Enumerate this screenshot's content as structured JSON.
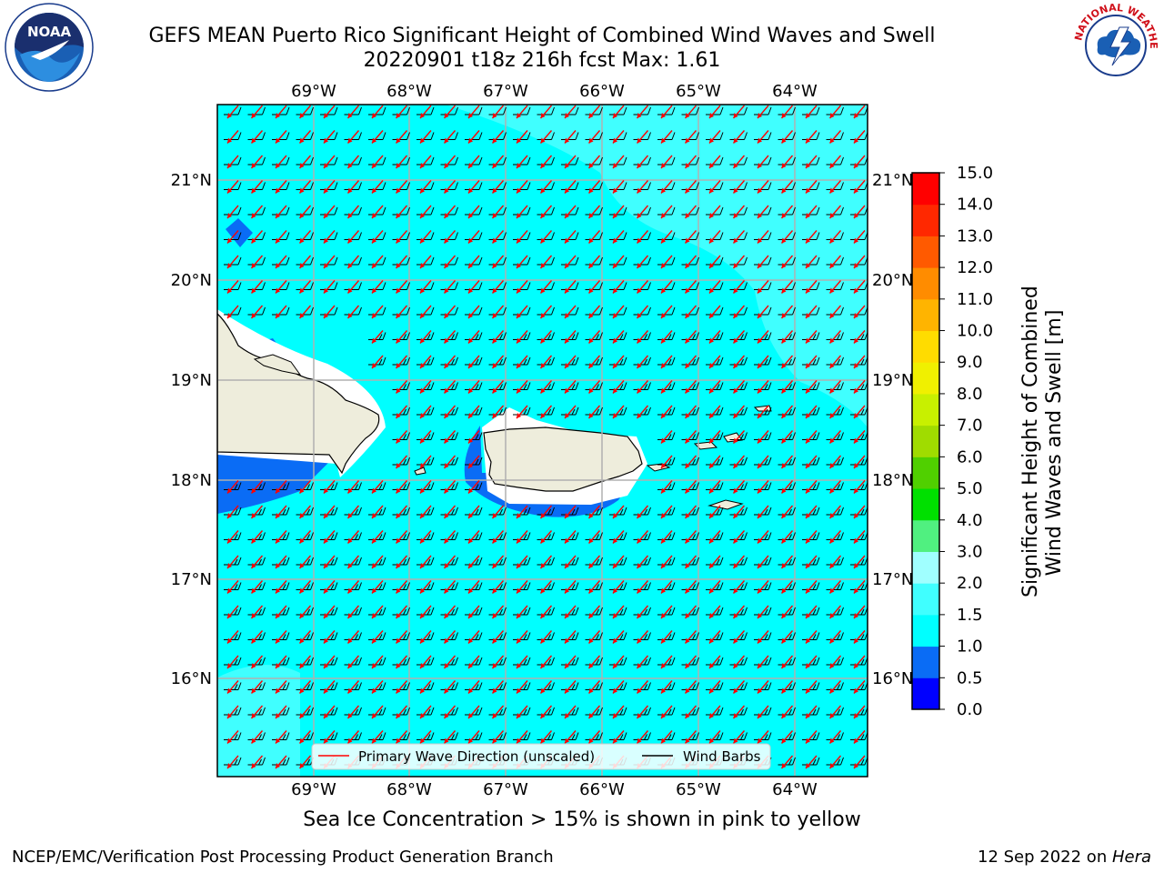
{
  "title_line1": "GEFS MEAN Puerto Rico Significant Height of Combined Wind Waves and Swell",
  "title_line2": "20220901 t18z 216h fcst   Max: 1.61",
  "caption": "Sea Ice Concentration > 15% is shown in pink to yellow",
  "footer_left": "NCEP/EMC/Verification Post Processing Product Generation Branch",
  "footer_right_date": "12 Sep 2022 on ",
  "footer_right_machine": "Hera",
  "colorbar": {
    "title_line1": "Significant Height of Combined",
    "title_line2": "Wind Waves and Swell [m]",
    "ticks": [
      "0.0",
      "0.5",
      "1.0",
      "1.5",
      "2.0",
      "3.0",
      "4.0",
      "5.0",
      "6.0",
      "7.0",
      "8.0",
      "9.0",
      "10.0",
      "11.0",
      "12.0",
      "13.0",
      "14.0",
      "15.0"
    ],
    "colors": [
      "#0000ff",
      "#0a6cf5",
      "#00ffff",
      "#40ffff",
      "#a0ffff",
      "#50f080",
      "#00e000",
      "#50d000",
      "#a0dc00",
      "#c8f000",
      "#f0f000",
      "#ffdc00",
      "#ffb400",
      "#ff8c00",
      "#ff5a00",
      "#ff2800",
      "#ff0000"
    ]
  },
  "map": {
    "lon_labels": [
      "69°W",
      "68°W",
      "67°W",
      "66°W",
      "65°W",
      "64°W"
    ],
    "lat_labels": [
      "21°N",
      "20°N",
      "19°N",
      "18°N",
      "17°N",
      "16°N"
    ],
    "sea_color": "#00ffff",
    "land_color": "#eeeddc"
  },
  "legend": {
    "wave_label": "Primary Wave Direction (unscaled)",
    "barb_label": "Wind Barbs",
    "wave_color": "#ff0000"
  },
  "logos": {
    "noaa": "NOAA",
    "nws": "NATIONAL WEATHER SERVICE"
  }
}
